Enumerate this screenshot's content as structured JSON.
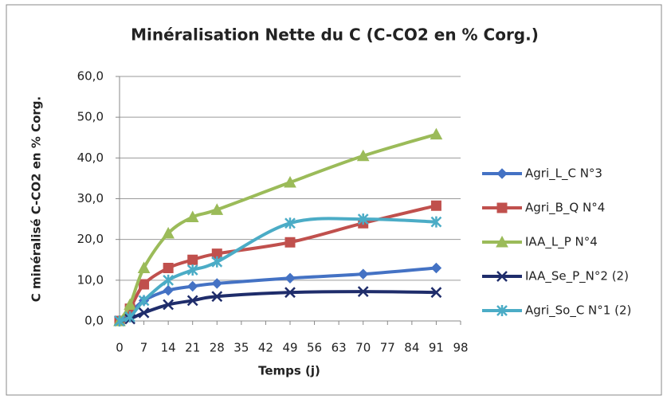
{
  "chart_data": {
    "type": "line",
    "title": "Minéralisation Nette du C (C-CO2 en % Corg.)",
    "x_label": "Temps (j)",
    "y_label": "C minéralisé  C-CO2 en % Corg.",
    "x": [
      0,
      3,
      7,
      14,
      21,
      28,
      49,
      70,
      91
    ],
    "series": [
      {
        "name": "Agri_L_C N°3",
        "color": "#4472c4",
        "marker": "diamond",
        "values": [
          0,
          2,
          5,
          7.5,
          8.5,
          9.2,
          10.5,
          11.5,
          13
        ]
      },
      {
        "name": "Agri_B_Q N°4",
        "color": "#c0504d",
        "marker": "square",
        "values": [
          0,
          3,
          9,
          13,
          15,
          16.5,
          19.3,
          24,
          28.3
        ]
      },
      {
        "name": "IAA_L_P N°4",
        "color": "#9bbb59",
        "marker": "triangle",
        "values": [
          0,
          4,
          13,
          21.5,
          25.5,
          27.3,
          34,
          40.5,
          45.8
        ]
      },
      {
        "name": "IAA_Se_P_N°2 (2)",
        "color": "#1f2d6b",
        "marker": "x",
        "values": [
          0,
          0.5,
          2,
          4,
          5,
          6,
          7,
          7.2,
          7
        ]
      },
      {
        "name": "Agri_So_C N°1 (2)",
        "color": "#4bacc6",
        "marker": "asterisk",
        "values": [
          0,
          1,
          5,
          10,
          12.5,
          14.5,
          24,
          25,
          24.3
        ]
      }
    ],
    "xlim": [
      0,
      98
    ],
    "xticks": [
      0,
      7,
      14,
      21,
      28,
      35,
      42,
      49,
      56,
      63,
      70,
      77,
      84,
      91,
      98
    ],
    "ylim": [
      0,
      60
    ],
    "yticks": [
      {
        "value": 0,
        "label": "0,0"
      },
      {
        "value": 10,
        "label": "10,0"
      },
      {
        "value": 20,
        "label": "20,0"
      },
      {
        "value": 30,
        "label": "30,0"
      },
      {
        "value": 40,
        "label": "40,0"
      },
      {
        "value": 50,
        "label": "50,0"
      },
      {
        "value": 60,
        "label": "60,0"
      }
    ],
    "grid": true,
    "legend": "right"
  }
}
